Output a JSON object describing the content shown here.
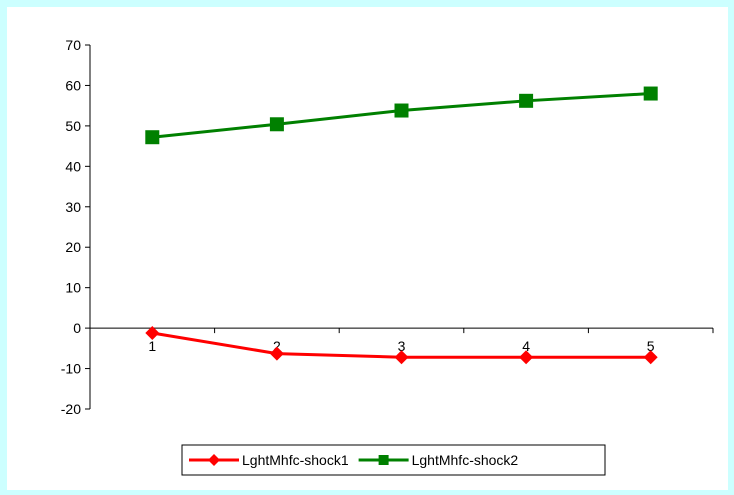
{
  "chart_data": {
    "type": "line",
    "x": [
      "1",
      "2",
      "3",
      "4",
      "5"
    ],
    "ylim": [
      -20,
      70
    ],
    "yticks": [
      -20,
      -10,
      0,
      10,
      20,
      30,
      40,
      50,
      60,
      70
    ],
    "grid": false,
    "legend_position": "bottom",
    "series": [
      {
        "name": "LghtMhfc-shock1",
        "values": [
          -1.2,
          -6.3,
          -7.2,
          -7.2,
          -7.2
        ],
        "color": "#ff0000",
        "marker": "diamond"
      },
      {
        "name": "LghtMhfc-shock2",
        "values": [
          47.2,
          50.4,
          53.8,
          56.2,
          58.0
        ],
        "color": "#008000",
        "marker": "square"
      }
    ]
  }
}
